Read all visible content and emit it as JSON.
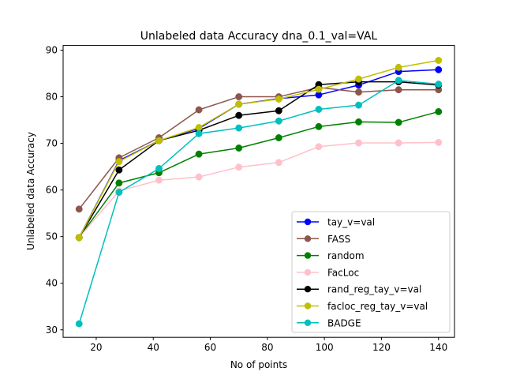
{
  "chart_data": {
    "type": "line",
    "title": "Unlabeled data Accuracy dna_0.1_val=VAL",
    "xlabel": "No of points",
    "ylabel": "Unlabeled data Accuracy",
    "xlim": [
      8.4,
      145.6
    ],
    "ylim": [
      28.4,
      91.0
    ],
    "xticks": [
      20,
      40,
      60,
      80,
      100,
      120,
      140
    ],
    "yticks": [
      30,
      40,
      50,
      60,
      70,
      80,
      90
    ],
    "legend_position": "lower-right",
    "x": [
      14,
      28,
      42,
      56,
      70,
      84,
      98,
      112,
      126,
      140
    ],
    "series": [
      {
        "name": "tay_v=val",
        "color": "#0000ff",
        "values": [
          49.8,
          66.3,
          70.6,
          73.2,
          78.4,
          79.6,
          80.4,
          82.5,
          85.4,
          85.8
        ]
      },
      {
        "name": "FASS",
        "color": "#8c564b",
        "values": [
          55.9,
          66.9,
          71.2,
          77.2,
          80.0,
          80.0,
          82.0,
          81.0,
          81.5,
          81.5
        ]
      },
      {
        "name": "random",
        "color": "#008000",
        "values": [
          49.8,
          61.5,
          63.7,
          67.7,
          69.0,
          71.2,
          73.6,
          74.6,
          74.5,
          76.8
        ]
      },
      {
        "name": "FacLoc",
        "color": "#ffc0cb",
        "values": [
          49.8,
          59.8,
          62.1,
          62.8,
          64.9,
          65.9,
          69.3,
          70.1,
          70.1,
          70.2
        ]
      },
      {
        "name": "rand_reg_tay_v=val",
        "color": "#000000",
        "values": [
          49.8,
          64.3,
          70.6,
          72.8,
          76.0,
          77.0,
          82.6,
          83.2,
          83.2,
          82.5
        ]
      },
      {
        "name": "facloc_reg_tay_v=val",
        "color": "#bfbf00",
        "values": [
          49.8,
          66.1,
          70.6,
          73.4,
          78.4,
          79.5,
          81.6,
          83.8,
          86.3,
          87.8
        ]
      },
      {
        "name": "BADGE",
        "color": "#00bfbf",
        "values": [
          31.3,
          59.5,
          64.6,
          72.1,
          73.3,
          74.8,
          77.3,
          78.2,
          83.5,
          82.7
        ]
      }
    ]
  }
}
